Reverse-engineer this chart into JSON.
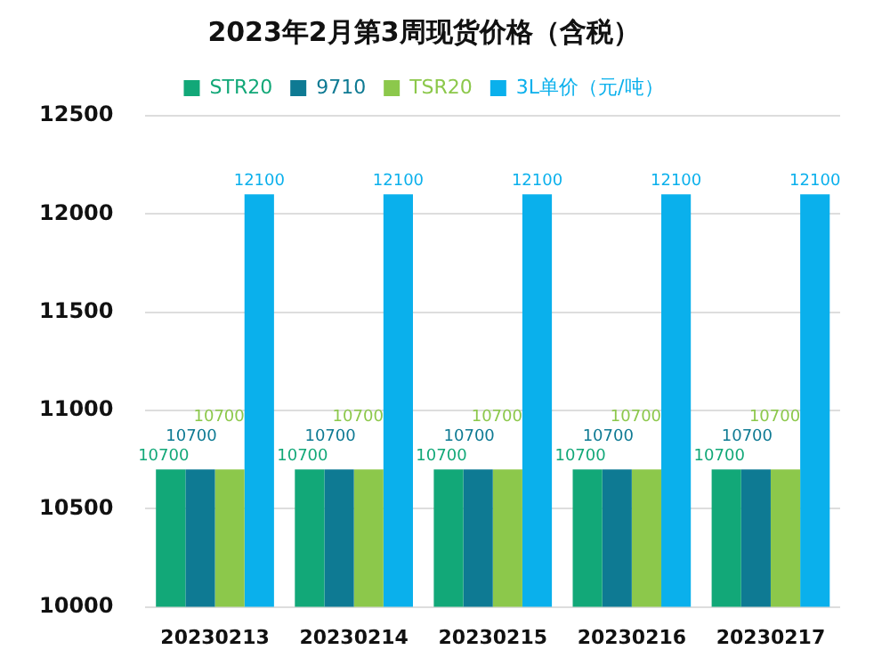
{
  "chart_data": {
    "type": "bar",
    "title": "2023年2月第3周现货价格（含税）",
    "categories": [
      "20230213",
      "20230214",
      "20230215",
      "20230216",
      "20230217"
    ],
    "series": [
      {
        "name": "STR20",
        "color": "#12a878",
        "values": [
          10700,
          10700,
          10700,
          10700,
          10700
        ]
      },
      {
        "name": "9710",
        "color": "#0e7a93",
        "values": [
          10700,
          10700,
          10700,
          10700,
          10700
        ]
      },
      {
        "name": "TSR20",
        "color": "#8cc84b",
        "values": [
          10700,
          10700,
          10700,
          10700,
          10700
        ]
      },
      {
        "name": "3L单价（元/吨）",
        "color": "#0ab0ec",
        "values": [
          12100,
          12100,
          12100,
          12100,
          12100
        ]
      }
    ],
    "ylim": [
      10000,
      12500
    ],
    "yticks": [
      10000,
      10500,
      11000,
      11500,
      12000,
      12500
    ],
    "grid": "y",
    "legend": "top",
    "data_labels": true
  }
}
